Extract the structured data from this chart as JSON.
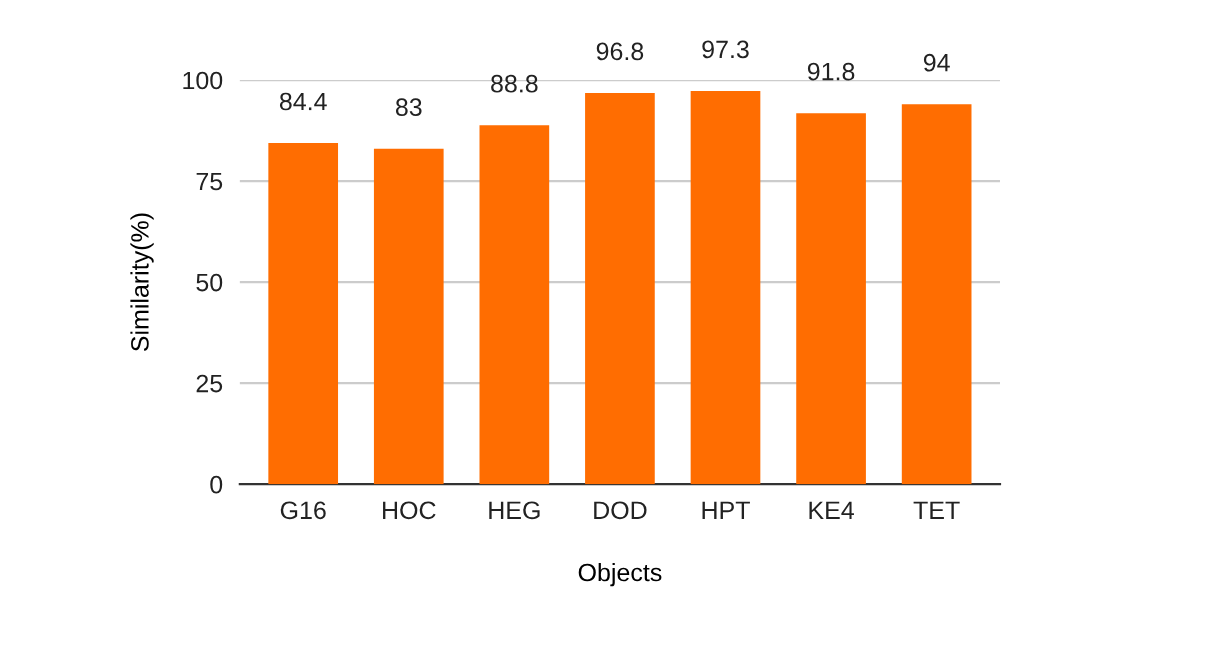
{
  "chart_data": {
    "type": "bar",
    "xlabel": "Objects",
    "ylabel": "Similarity(%)",
    "categories": [
      "G16",
      "HOC",
      "HEG",
      "DOD",
      "HPT",
      "KE4",
      "TET"
    ],
    "values": [
      84.4,
      83,
      88.8,
      96.8,
      97.3,
      91.8,
      94
    ],
    "color": "#ff6d01",
    "ylim": [
      0,
      100
    ],
    "yticks": [
      0,
      25,
      50,
      75,
      100
    ],
    "grid": "y",
    "data_labels": true
  }
}
